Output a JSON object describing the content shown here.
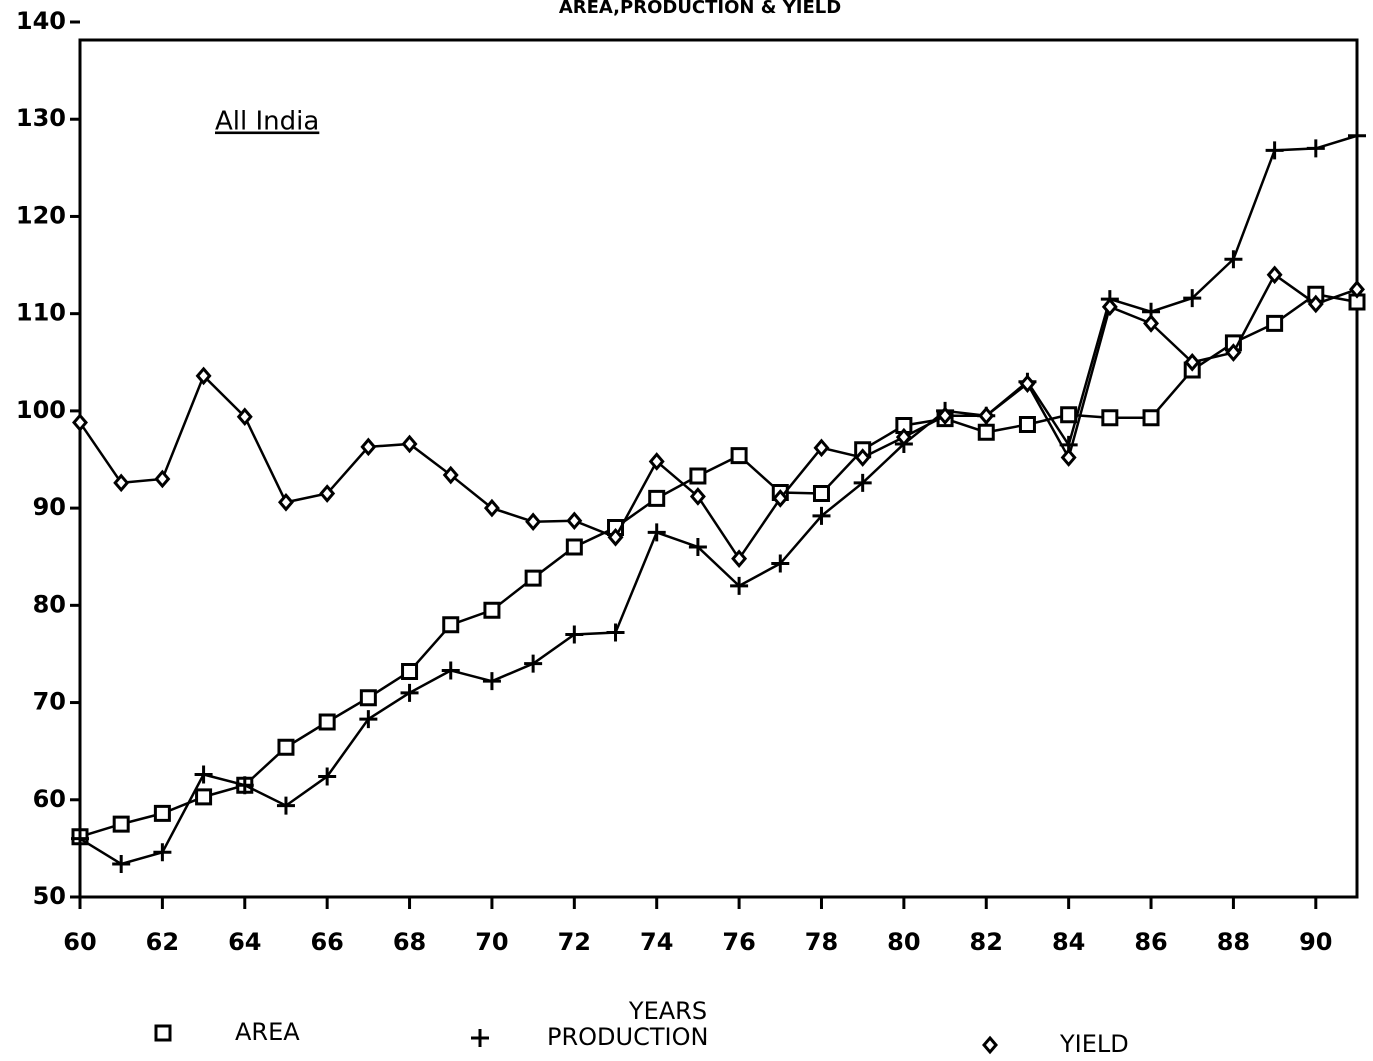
{
  "chart_data": {
    "type": "line",
    "title": "AREA,PRODUCTION & YIELD",
    "annotation": "All India",
    "x_label": "YEARS",
    "x": [
      60,
      61,
      62,
      63,
      64,
      65,
      66,
      67,
      68,
      69,
      70,
      71,
      72,
      73,
      74,
      75,
      76,
      77,
      78,
      79,
      80,
      81,
      82,
      83,
      84,
      85,
      86,
      87,
      88,
      89,
      90,
      91
    ],
    "series": [
      {
        "name": "AREA",
        "color": "#000000",
        "marker": "square",
        "values": [
          56.2,
          57.5,
          58.6,
          60.3,
          61.5,
          65.4,
          68.0,
          70.5,
          73.2,
          78.0,
          79.5,
          82.8,
          86.0,
          88.0,
          91.0,
          93.3,
          95.4,
          91.6,
          91.5,
          96.0,
          98.5,
          99.2,
          97.8,
          98.6,
          99.6,
          99.3,
          99.3,
          104.2,
          107.0,
          109.0,
          112.0,
          111.2
        ]
      },
      {
        "name": "PRODUCTION",
        "color": "#000000",
        "marker": "plus",
        "values": [
          56.0,
          53.4,
          54.6,
          62.6,
          61.5,
          59.4,
          62.4,
          68.3,
          71.0,
          73.3,
          72.2,
          74.0,
          77.0,
          77.2,
          87.5,
          86.0,
          82.0,
          84.3,
          89.2,
          92.6,
          96.6,
          100.0,
          99.5,
          103.0,
          96.5,
          111.5,
          110.2,
          111.6,
          115.6,
          126.8,
          127.0,
          128.3
        ]
      },
      {
        "name": "YIELD",
        "color": "#000000",
        "marker": "diamond",
        "values": [
          98.8,
          92.6,
          93.0,
          103.6,
          99.4,
          90.6,
          91.5,
          96.3,
          96.6,
          93.4,
          90.0,
          88.6,
          88.7,
          87.0,
          94.8,
          91.2,
          84.8,
          91.0,
          96.2,
          95.2,
          97.3,
          99.5,
          99.5,
          102.8,
          95.2,
          110.7,
          109.0,
          105.0,
          106.0,
          114.0,
          111.0,
          112.5
        ]
      }
    ],
    "xlim": [
      60,
      91
    ],
    "xticks": [
      60,
      62,
      64,
      66,
      68,
      70,
      72,
      74,
      76,
      78,
      80,
      82,
      84,
      86,
      88,
      90
    ],
    "ylim": [
      50,
      140
    ],
    "yticks": [
      50,
      60,
      70,
      80,
      90,
      100,
      110,
      120,
      130,
      140
    ]
  }
}
